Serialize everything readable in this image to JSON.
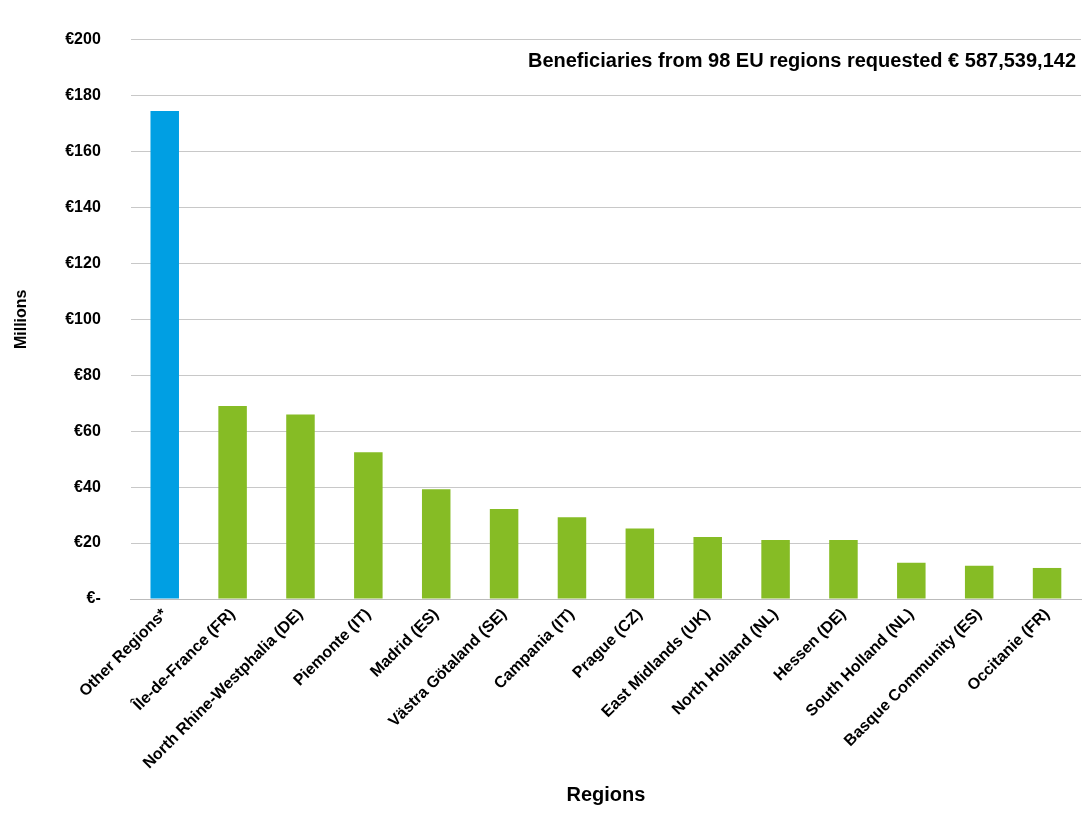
{
  "chart_data": {
    "type": "bar",
    "xlabel": "Regions",
    "ylabel": "Millions",
    "annotations": [
      "Beneficiaries from 98 EU regions requested € 587,539,142"
    ],
    "categories": [
      "Other Regions*",
      "Île-de-France (FR)",
      "North Rhine-Westphalia (DE)",
      "Piemonte (IT)",
      "Madrid (ES)",
      "Västra Götaland (SE)",
      "Campania (IT)",
      "Prague (CZ)",
      "East Midlands (UK)",
      "North Holland (NL)",
      "Hessen (DE)",
      "South Holland (NL)",
      "Basque Community (ES)",
      "Occitanie (FR)"
    ],
    "values": [
      174.5,
      69,
      66,
      52.5,
      39.2,
      32.2,
      29.2,
      25.2,
      22.2,
      21.1,
      21.1,
      13,
      11.9,
      11.1
    ],
    "colors": [
      "#009fe3",
      "#86bc25",
      "#86bc25",
      "#86bc25",
      "#86bc25",
      "#86bc25",
      "#86bc25",
      "#86bc25",
      "#86bc25",
      "#86bc25",
      "#86bc25",
      "#86bc25",
      "#86bc25",
      "#86bc25"
    ],
    "ylim": [
      0,
      200
    ],
    "yticks": [
      {
        "value": 0,
        "label": "€-"
      },
      {
        "value": 20,
        "label": "€20"
      },
      {
        "value": 40,
        "label": "€40"
      },
      {
        "value": 60,
        "label": "€60"
      },
      {
        "value": 80,
        "label": "€80"
      },
      {
        "value": 100,
        "label": "€100"
      },
      {
        "value": 120,
        "label": "€120"
      },
      {
        "value": 140,
        "label": "€140"
      },
      {
        "value": 160,
        "label": "€160"
      },
      {
        "value": 180,
        "label": "€180"
      },
      {
        "value": 200,
        "label": "€200"
      }
    ],
    "grid": "y",
    "legend": false
  }
}
